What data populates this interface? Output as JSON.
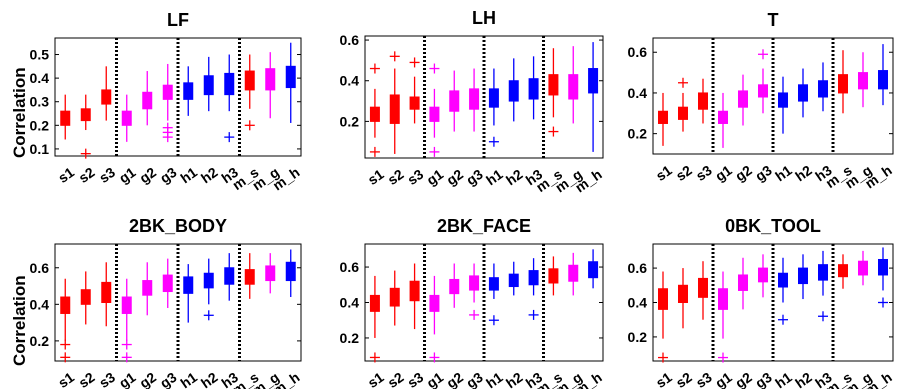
{
  "figure": {
    "ylabel_rows": [
      "Correlation",
      "Correlation"
    ]
  },
  "chart_data": [
    {
      "type": "boxplot",
      "title": "LF",
      "ylabel": "Correlation",
      "ylim": [
        0.07,
        0.57
      ],
      "yticks": [
        0.1,
        0.2,
        0.3,
        0.4,
        0.5
      ],
      "yticklabels": [
        "0.1",
        "0.2",
        "0.3",
        "0.4",
        "0.5"
      ],
      "categories": [
        "s1",
        "s2",
        "s3",
        "g1",
        "g2",
        "g3",
        "h1",
        "h2",
        "h3",
        "m_s",
        "m_g",
        "m_h"
      ],
      "colors": [
        "#ff0000",
        "#ff0000",
        "#ff0000",
        "#ff00ff",
        "#ff00ff",
        "#ff00ff",
        "#0000ff",
        "#0000ff",
        "#0000ff",
        "#ff0000",
        "#ff00ff",
        "#0000ff"
      ],
      "group_separators_after": [
        3,
        6,
        9
      ],
      "boxes": [
        {
          "whislo": 0.14,
          "q1": 0.2,
          "med": 0.23,
          "q3": 0.26,
          "whishi": 0.33,
          "fliers": []
        },
        {
          "whislo": 0.18,
          "q1": 0.22,
          "med": 0.24,
          "q3": 0.27,
          "whishi": 0.33,
          "fliers": [
            0.08
          ]
        },
        {
          "whislo": 0.22,
          "q1": 0.29,
          "med": 0.32,
          "q3": 0.35,
          "whishi": 0.45,
          "fliers": []
        },
        {
          "whislo": 0.13,
          "q1": 0.2,
          "med": 0.23,
          "q3": 0.26,
          "whishi": 0.33,
          "fliers": []
        },
        {
          "whislo": 0.2,
          "q1": 0.27,
          "med": 0.31,
          "q3": 0.34,
          "whishi": 0.43,
          "fliers": []
        },
        {
          "whislo": 0.22,
          "q1": 0.31,
          "med": 0.34,
          "q3": 0.37,
          "whishi": 0.46,
          "fliers": [
            0.15,
            0.17,
            0.19
          ]
        },
        {
          "whislo": 0.24,
          "q1": 0.31,
          "med": 0.34,
          "q3": 0.38,
          "whishi": 0.45,
          "fliers": []
        },
        {
          "whislo": 0.26,
          "q1": 0.33,
          "med": 0.37,
          "q3": 0.41,
          "whishi": 0.49,
          "fliers": []
        },
        {
          "whislo": 0.26,
          "q1": 0.33,
          "med": 0.38,
          "q3": 0.42,
          "whishi": 0.5,
          "fliers": [
            0.15
          ]
        },
        {
          "whislo": 0.27,
          "q1": 0.35,
          "med": 0.4,
          "q3": 0.43,
          "whishi": 0.5,
          "fliers": [
            0.2
          ]
        },
        {
          "whislo": 0.23,
          "q1": 0.35,
          "med": 0.4,
          "q3": 0.44,
          "whishi": 0.51,
          "fliers": []
        },
        {
          "whislo": 0.21,
          "q1": 0.36,
          "med": 0.41,
          "q3": 0.45,
          "whishi": 0.55,
          "fliers": []
        }
      ]
    },
    {
      "type": "boxplot",
      "title": "LH",
      "ylabel": "",
      "ylim": [
        0.02,
        0.62
      ],
      "yticks": [
        0.2,
        0.4,
        0.6
      ],
      "yticklabels": [
        "0.2",
        "0.4",
        "0.6"
      ],
      "categories": [
        "s1",
        "s2",
        "s3",
        "g1",
        "g2",
        "g3",
        "h1",
        "h2",
        "h3",
        "m_s",
        "m_g",
        "m_h"
      ],
      "colors": [
        "#ff0000",
        "#ff0000",
        "#ff0000",
        "#ff00ff",
        "#ff00ff",
        "#ff00ff",
        "#0000ff",
        "#0000ff",
        "#0000ff",
        "#ff0000",
        "#ff00ff",
        "#0000ff"
      ],
      "group_separators_after": [
        3,
        6,
        9
      ],
      "boxes": [
        {
          "whislo": 0.12,
          "q1": 0.2,
          "med": 0.24,
          "q3": 0.27,
          "whishi": 0.36,
          "fliers": [
            0.05,
            0.46
          ]
        },
        {
          "whislo": 0.04,
          "q1": 0.19,
          "med": 0.24,
          "q3": 0.33,
          "whishi": 0.46,
          "fliers": [
            0.52
          ]
        },
        {
          "whislo": 0.19,
          "q1": 0.26,
          "med": 0.29,
          "q3": 0.32,
          "whishi": 0.42,
          "fliers": [
            0.49
          ]
        },
        {
          "whislo": 0.12,
          "q1": 0.2,
          "med": 0.23,
          "q3": 0.27,
          "whishi": 0.36,
          "fliers": [
            0.05,
            0.46
          ]
        },
        {
          "whislo": 0.15,
          "q1": 0.25,
          "med": 0.3,
          "q3": 0.35,
          "whishi": 0.45,
          "fliers": []
        },
        {
          "whislo": 0.15,
          "q1": 0.26,
          "med": 0.31,
          "q3": 0.36,
          "whishi": 0.46,
          "fliers": []
        },
        {
          "whislo": 0.18,
          "q1": 0.27,
          "med": 0.31,
          "q3": 0.36,
          "whishi": 0.46,
          "fliers": [
            0.1
          ]
        },
        {
          "whislo": 0.2,
          "q1": 0.3,
          "med": 0.35,
          "q3": 0.4,
          "whishi": 0.51,
          "fliers": []
        },
        {
          "whislo": 0.21,
          "q1": 0.31,
          "med": 0.35,
          "q3": 0.41,
          "whishi": 0.52,
          "fliers": []
        },
        {
          "whislo": 0.22,
          "q1": 0.33,
          "med": 0.38,
          "q3": 0.43,
          "whishi": 0.56,
          "fliers": [
            0.15
          ]
        },
        {
          "whislo": 0.19,
          "q1": 0.31,
          "med": 0.37,
          "q3": 0.43,
          "whishi": 0.57,
          "fliers": []
        },
        {
          "whislo": 0.05,
          "q1": 0.34,
          "med": 0.4,
          "q3": 0.46,
          "whishi": 0.59,
          "fliers": []
        }
      ]
    },
    {
      "type": "boxplot",
      "title": "T",
      "ylabel": "",
      "ylim": [
        0.1,
        0.67
      ],
      "yticks": [
        0.2,
        0.4,
        0.6
      ],
      "yticklabels": [
        "0.2",
        "0.4",
        "0.6"
      ],
      "categories": [
        "s1",
        "s2",
        "s3",
        "g1",
        "g2",
        "g3",
        "h1",
        "h2",
        "h3",
        "m_s",
        "m_g",
        "m_h"
      ],
      "colors": [
        "#ff0000",
        "#ff0000",
        "#ff0000",
        "#ff00ff",
        "#ff00ff",
        "#ff00ff",
        "#0000ff",
        "#0000ff",
        "#0000ff",
        "#ff0000",
        "#ff00ff",
        "#0000ff"
      ],
      "group_separators_after": [
        3,
        6,
        9
      ],
      "boxes": [
        {
          "whislo": 0.14,
          "q1": 0.25,
          "med": 0.28,
          "q3": 0.31,
          "whishi": 0.4,
          "fliers": []
        },
        {
          "whislo": 0.21,
          "q1": 0.27,
          "med": 0.3,
          "q3": 0.33,
          "whishi": 0.4,
          "fliers": [
            0.45
          ]
        },
        {
          "whislo": 0.25,
          "q1": 0.32,
          "med": 0.36,
          "q3": 0.4,
          "whishi": 0.47,
          "fliers": []
        },
        {
          "whislo": 0.13,
          "q1": 0.25,
          "med": 0.28,
          "q3": 0.31,
          "whishi": 0.4,
          "fliers": []
        },
        {
          "whislo": 0.24,
          "q1": 0.33,
          "med": 0.37,
          "q3": 0.41,
          "whishi": 0.49,
          "fliers": []
        },
        {
          "whislo": 0.3,
          "q1": 0.38,
          "med": 0.41,
          "q3": 0.44,
          "whishi": 0.52,
          "fliers": [
            0.59
          ]
        },
        {
          "whislo": 0.2,
          "q1": 0.33,
          "med": 0.37,
          "q3": 0.4,
          "whishi": 0.48,
          "fliers": []
        },
        {
          "whislo": 0.28,
          "q1": 0.36,
          "med": 0.4,
          "q3": 0.44,
          "whishi": 0.52,
          "fliers": []
        },
        {
          "whislo": 0.31,
          "q1": 0.38,
          "med": 0.42,
          "q3": 0.46,
          "whishi": 0.55,
          "fliers": []
        },
        {
          "whislo": 0.3,
          "q1": 0.4,
          "med": 0.45,
          "q3": 0.49,
          "whishi": 0.61,
          "fliers": []
        },
        {
          "whislo": 0.33,
          "q1": 0.42,
          "med": 0.46,
          "q3": 0.5,
          "whishi": 0.6,
          "fliers": []
        },
        {
          "whislo": 0.34,
          "q1": 0.42,
          "med": 0.47,
          "q3": 0.51,
          "whishi": 0.64,
          "fliers": []
        }
      ]
    },
    {
      "type": "boxplot",
      "title": "2BK_BODY",
      "ylabel": "Correlation",
      "ylim": [
        0.09,
        0.73
      ],
      "yticks": [
        0.2,
        0.4,
        0.6
      ],
      "yticklabels": [
        "0.2",
        "0.4",
        "0.6"
      ],
      "categories": [
        "s1",
        "s2",
        "s3",
        "g1",
        "g2",
        "g3",
        "h1",
        "h2",
        "h3",
        "m_s",
        "m_g",
        "m_h"
      ],
      "colors": [
        "#ff0000",
        "#ff0000",
        "#ff0000",
        "#ff00ff",
        "#ff00ff",
        "#ff00ff",
        "#0000ff",
        "#0000ff",
        "#0000ff",
        "#ff0000",
        "#ff00ff",
        "#0000ff"
      ],
      "group_separators_after": [
        3,
        6,
        9
      ],
      "boxes": [
        {
          "whislo": 0.2,
          "q1": 0.35,
          "med": 0.4,
          "q3": 0.44,
          "whishi": 0.54,
          "fliers": [
            0.11,
            0.18
          ]
        },
        {
          "whislo": 0.29,
          "q1": 0.4,
          "med": 0.44,
          "q3": 0.48,
          "whishi": 0.58,
          "fliers": []
        },
        {
          "whislo": 0.28,
          "q1": 0.41,
          "med": 0.46,
          "q3": 0.52,
          "whishi": 0.63,
          "fliers": []
        },
        {
          "whislo": 0.2,
          "q1": 0.35,
          "med": 0.4,
          "q3": 0.44,
          "whishi": 0.54,
          "fliers": [
            0.11,
            0.18
          ]
        },
        {
          "whislo": 0.34,
          "q1": 0.45,
          "med": 0.49,
          "q3": 0.53,
          "whishi": 0.63,
          "fliers": []
        },
        {
          "whislo": 0.38,
          "q1": 0.47,
          "med": 0.51,
          "q3": 0.56,
          "whishi": 0.65,
          "fliers": []
        },
        {
          "whislo": 0.3,
          "q1": 0.46,
          "med": 0.5,
          "q3": 0.55,
          "whishi": 0.62,
          "fliers": []
        },
        {
          "whislo": 0.4,
          "q1": 0.49,
          "med": 0.53,
          "q3": 0.57,
          "whishi": 0.65,
          "fliers": [
            0.34
          ]
        },
        {
          "whislo": 0.42,
          "q1": 0.51,
          "med": 0.55,
          "q3": 0.6,
          "whishi": 0.68,
          "fliers": []
        },
        {
          "whislo": 0.43,
          "q1": 0.51,
          "med": 0.56,
          "q3": 0.59,
          "whishi": 0.68,
          "fliers": []
        },
        {
          "whislo": 0.46,
          "q1": 0.53,
          "med": 0.57,
          "q3": 0.61,
          "whishi": 0.68,
          "fliers": []
        },
        {
          "whislo": 0.44,
          "q1": 0.53,
          "med": 0.58,
          "q3": 0.63,
          "whishi": 0.7,
          "fliers": []
        }
      ]
    },
    {
      "type": "boxplot",
      "title": "2BK_FACE",
      "ylabel": "",
      "ylim": [
        0.07,
        0.73
      ],
      "yticks": [
        0.2,
        0.4,
        0.6
      ],
      "yticklabels": [
        "0.2",
        "0.4",
        "0.6"
      ],
      "categories": [
        "s1",
        "s2",
        "s3",
        "g1",
        "g2",
        "g3",
        "h1",
        "h2",
        "h3",
        "m_s",
        "m_g",
        "m_h"
      ],
      "colors": [
        "#ff0000",
        "#ff0000",
        "#ff0000",
        "#ff00ff",
        "#ff00ff",
        "#ff00ff",
        "#0000ff",
        "#0000ff",
        "#0000ff",
        "#ff0000",
        "#ff00ff",
        "#0000ff"
      ],
      "group_separators_after": [
        3,
        6,
        9
      ],
      "boxes": [
        {
          "whislo": 0.2,
          "q1": 0.35,
          "med": 0.4,
          "q3": 0.44,
          "whishi": 0.55,
          "fliers": [
            0.09
          ]
        },
        {
          "whislo": 0.27,
          "q1": 0.38,
          "med": 0.43,
          "q3": 0.48,
          "whishi": 0.58,
          "fliers": []
        },
        {
          "whislo": 0.25,
          "q1": 0.41,
          "med": 0.46,
          "q3": 0.52,
          "whishi": 0.62,
          "fliers": []
        },
        {
          "whislo": 0.22,
          "q1": 0.35,
          "med": 0.4,
          "q3": 0.44,
          "whishi": 0.55,
          "fliers": [
            0.09
          ]
        },
        {
          "whislo": 0.37,
          "q1": 0.45,
          "med": 0.49,
          "q3": 0.53,
          "whishi": 0.62,
          "fliers": []
        },
        {
          "whislo": 0.4,
          "q1": 0.47,
          "med": 0.51,
          "q3": 0.55,
          "whishi": 0.62,
          "fliers": [
            0.33
          ]
        },
        {
          "whislo": 0.42,
          "q1": 0.47,
          "med": 0.5,
          "q3": 0.54,
          "whishi": 0.62,
          "fliers": [
            0.3
          ]
        },
        {
          "whislo": 0.44,
          "q1": 0.49,
          "med": 0.52,
          "q3": 0.56,
          "whishi": 0.63,
          "fliers": []
        },
        {
          "whislo": 0.44,
          "q1": 0.5,
          "med": 0.54,
          "q3": 0.58,
          "whishi": 0.65,
          "fliers": [
            0.33
          ]
        },
        {
          "whislo": 0.44,
          "q1": 0.51,
          "med": 0.55,
          "q3": 0.59,
          "whishi": 0.66,
          "fliers": []
        },
        {
          "whislo": 0.44,
          "q1": 0.52,
          "med": 0.56,
          "q3": 0.61,
          "whishi": 0.68,
          "fliers": []
        },
        {
          "whislo": 0.48,
          "q1": 0.54,
          "med": 0.58,
          "q3": 0.63,
          "whishi": 0.7,
          "fliers": []
        }
      ]
    },
    {
      "type": "boxplot",
      "title": "0BK_TOOL",
      "ylabel": "",
      "ylim": [
        0.06,
        0.74
      ],
      "yticks": [
        0.2,
        0.4,
        0.6
      ],
      "yticklabels": [
        "0.2",
        "0.4",
        "0.6"
      ],
      "categories": [
        "s1",
        "s2",
        "s3",
        "g1",
        "g2",
        "g3",
        "h1",
        "h2",
        "h3",
        "m_s",
        "m_g",
        "m_h"
      ],
      "colors": [
        "#ff0000",
        "#ff0000",
        "#ff0000",
        "#ff00ff",
        "#ff00ff",
        "#ff00ff",
        "#0000ff",
        "#0000ff",
        "#0000ff",
        "#ff0000",
        "#ff00ff",
        "#0000ff"
      ],
      "group_separators_after": [
        3,
        6,
        9
      ],
      "boxes": [
        {
          "whislo": 0.19,
          "q1": 0.36,
          "med": 0.42,
          "q3": 0.48,
          "whishi": 0.58,
          "fliers": [
            0.08
          ]
        },
        {
          "whislo": 0.25,
          "q1": 0.4,
          "med": 0.46,
          "q3": 0.5,
          "whishi": 0.6,
          "fliers": []
        },
        {
          "whislo": 0.3,
          "q1": 0.43,
          "med": 0.49,
          "q3": 0.54,
          "whishi": 0.64,
          "fliers": []
        },
        {
          "whislo": 0.19,
          "q1": 0.36,
          "med": 0.42,
          "q3": 0.48,
          "whishi": 0.58,
          "fliers": [
            0.08
          ]
        },
        {
          "whislo": 0.36,
          "q1": 0.47,
          "med": 0.52,
          "q3": 0.56,
          "whishi": 0.66,
          "fliers": []
        },
        {
          "whislo": 0.43,
          "q1": 0.52,
          "med": 0.56,
          "q3": 0.6,
          "whishi": 0.68,
          "fliers": []
        },
        {
          "whislo": 0.4,
          "q1": 0.49,
          "med": 0.53,
          "q3": 0.57,
          "whishi": 0.66,
          "fliers": [
            0.3
          ]
        },
        {
          "whislo": 0.42,
          "q1": 0.51,
          "med": 0.56,
          "q3": 0.6,
          "whishi": 0.68,
          "fliers": []
        },
        {
          "whislo": 0.44,
          "q1": 0.53,
          "med": 0.58,
          "q3": 0.62,
          "whishi": 0.7,
          "fliers": [
            0.32
          ]
        },
        {
          "whislo": 0.48,
          "q1": 0.55,
          "med": 0.59,
          "q3": 0.62,
          "whishi": 0.68,
          "fliers": []
        },
        {
          "whislo": 0.5,
          "q1": 0.56,
          "med": 0.6,
          "q3": 0.64,
          "whishi": 0.7,
          "fliers": []
        },
        {
          "whislo": 0.47,
          "q1": 0.56,
          "med": 0.61,
          "q3": 0.65,
          "whishi": 0.72,
          "fliers": [
            0.4
          ]
        }
      ]
    }
  ]
}
